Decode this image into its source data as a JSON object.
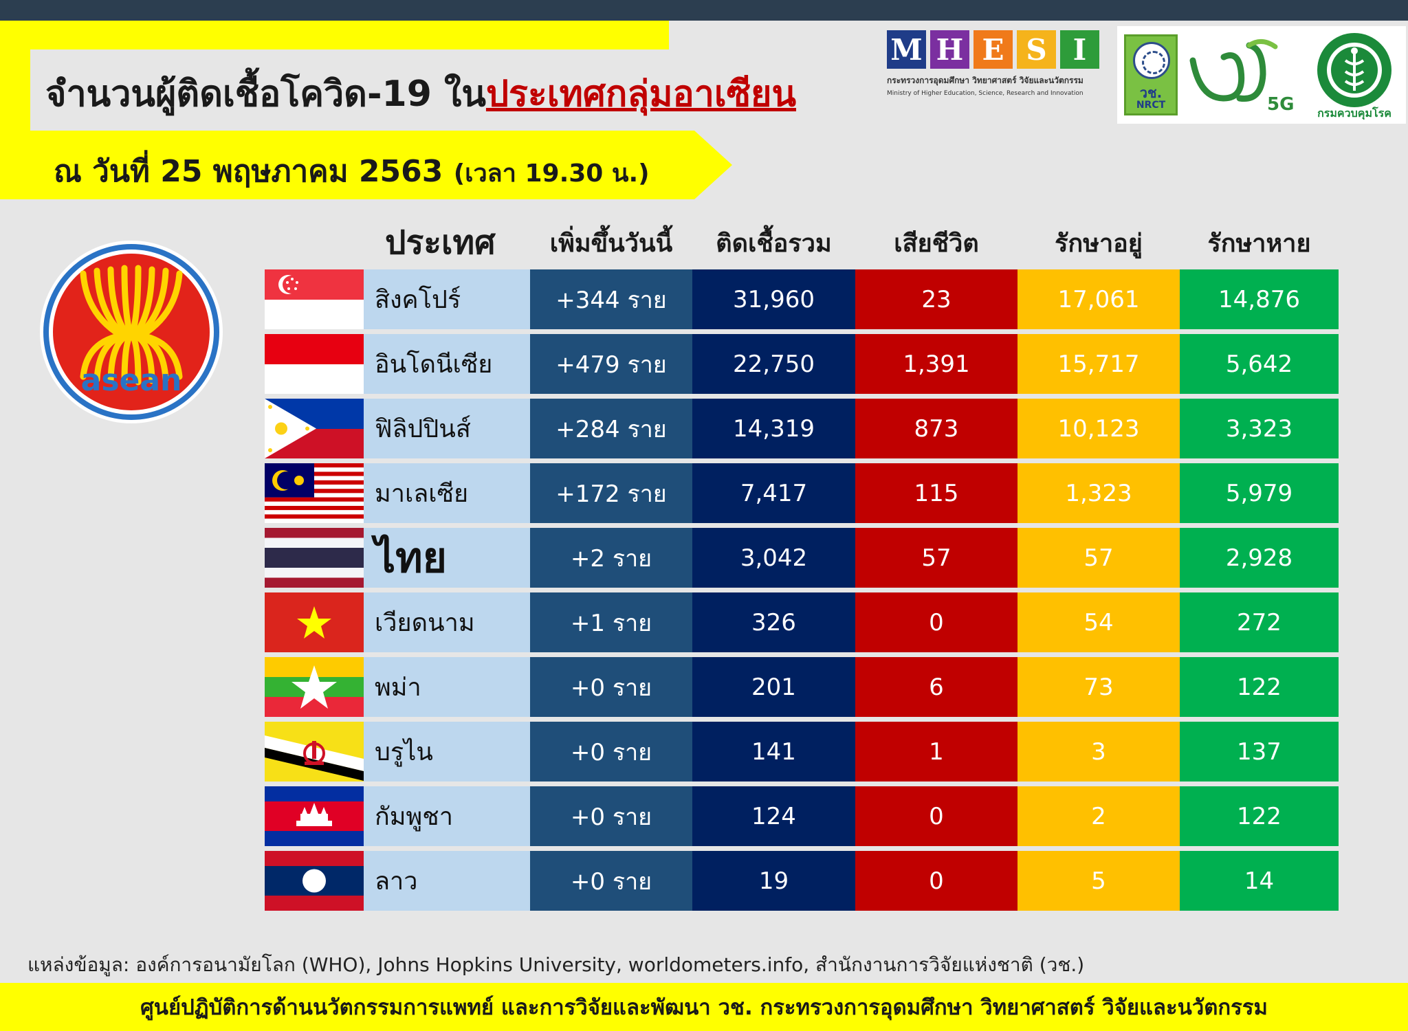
{
  "title": {
    "prefix": "จำนวนผู้ติดเชื้อโควิด-19 ใน",
    "highlight": "ประเทศกลุ่มอาเซียน"
  },
  "date": {
    "main": "ณ วันที่ 25 พฤษภาคม 2563",
    "time": "(เวลา 19.30 น.)"
  },
  "logos": {
    "mhesi_letters": [
      "M",
      "H",
      "E",
      "S",
      "I"
    ],
    "mhesi_colors": [
      "#1f3c88",
      "#7b2fa0",
      "#f07a1a",
      "#f5b31b",
      "#2e9c3a"
    ],
    "mhesi_th": "กระทรวงการอุดมศึกษา วิทยาศาสตร์ วิจัยและนวัตกรรม",
    "mhesi_en": "Ministry of Higher Education, Science, Research and Innovation",
    "nrct_th": "วช.",
    "nrct_en": "NRCT",
    "fiveg_label": "5G",
    "ddc_label": "กรมควบคุมโรค",
    "asean_text": "asean"
  },
  "table": {
    "headers": [
      "ประเทศ",
      "เพิ่มขึ้นวันนี้",
      "ติดเชื้อรวม",
      "เสียชีวิต",
      "รักษาอยู่",
      "รักษาหาย"
    ],
    "rows": [
      {
        "country": "สิงคโปร์",
        "flag": "singapore-flag",
        "increase": "+344 ราย",
        "total": "31,960",
        "deaths": "23",
        "active": "17,061",
        "recovered": "14,876"
      },
      {
        "country": "อินโดนีเซีย",
        "flag": "indonesia-flag",
        "increase": "+479 ราย",
        "total": "22,750",
        "deaths": "1,391",
        "active": "15,717",
        "recovered": "5,642"
      },
      {
        "country": "ฟิลิปปินส์",
        "flag": "philippines-flag",
        "increase": "+284 ราย",
        "total": "14,319",
        "deaths": "873",
        "active": "10,123",
        "recovered": "3,323"
      },
      {
        "country": "มาเลเซีย",
        "flag": "malaysia-flag",
        "increase": "+172 ราย",
        "total": "7,417",
        "deaths": "115",
        "active": "1,323",
        "recovered": "5,979"
      },
      {
        "country": "ไทย",
        "flag": "thailand-flag",
        "increase": "+2 ราย",
        "total": "3,042",
        "deaths": "57",
        "active": "57",
        "recovered": "2,928"
      },
      {
        "country": "เวียดนาม",
        "flag": "vietnam-flag",
        "increase": "+1 ราย",
        "total": "326",
        "deaths": "0",
        "active": "54",
        "recovered": "272"
      },
      {
        "country": "พม่า",
        "flag": "myanmar-flag",
        "increase": "+0 ราย",
        "total": "201",
        "deaths": "6",
        "active": "73",
        "recovered": "122"
      },
      {
        "country": "บรูไน",
        "flag": "brunei-flag",
        "increase": "+0 ราย",
        "total": "141",
        "deaths": "1",
        "active": "3",
        "recovered": "137"
      },
      {
        "country": "กัมพูชา",
        "flag": "cambodia-flag",
        "increase": "+0 ราย",
        "total": "124",
        "deaths": "0",
        "active": "2",
        "recovered": "122"
      },
      {
        "country": "ลาว",
        "flag": "laos-flag",
        "increase": "+0 ราย",
        "total": "19",
        "deaths": "0",
        "active": "5",
        "recovered": "14"
      }
    ]
  },
  "source": "แหล่งข้อมูล: องค์การอนามัยโลก (WHO), Johns Hopkins University, worldometers.info, สำนักงานการวิจัยแห่งชาติ (วช.)",
  "footer": "ศูนย์ปฏิบัติการด้านนวัตกรรมการแพทย์ และการวิจัยและพัฒนา  วช.   กระทรวงการอุดมศึกษา วิทยาศาสตร์ วิจัยและนวัตกรรม"
}
